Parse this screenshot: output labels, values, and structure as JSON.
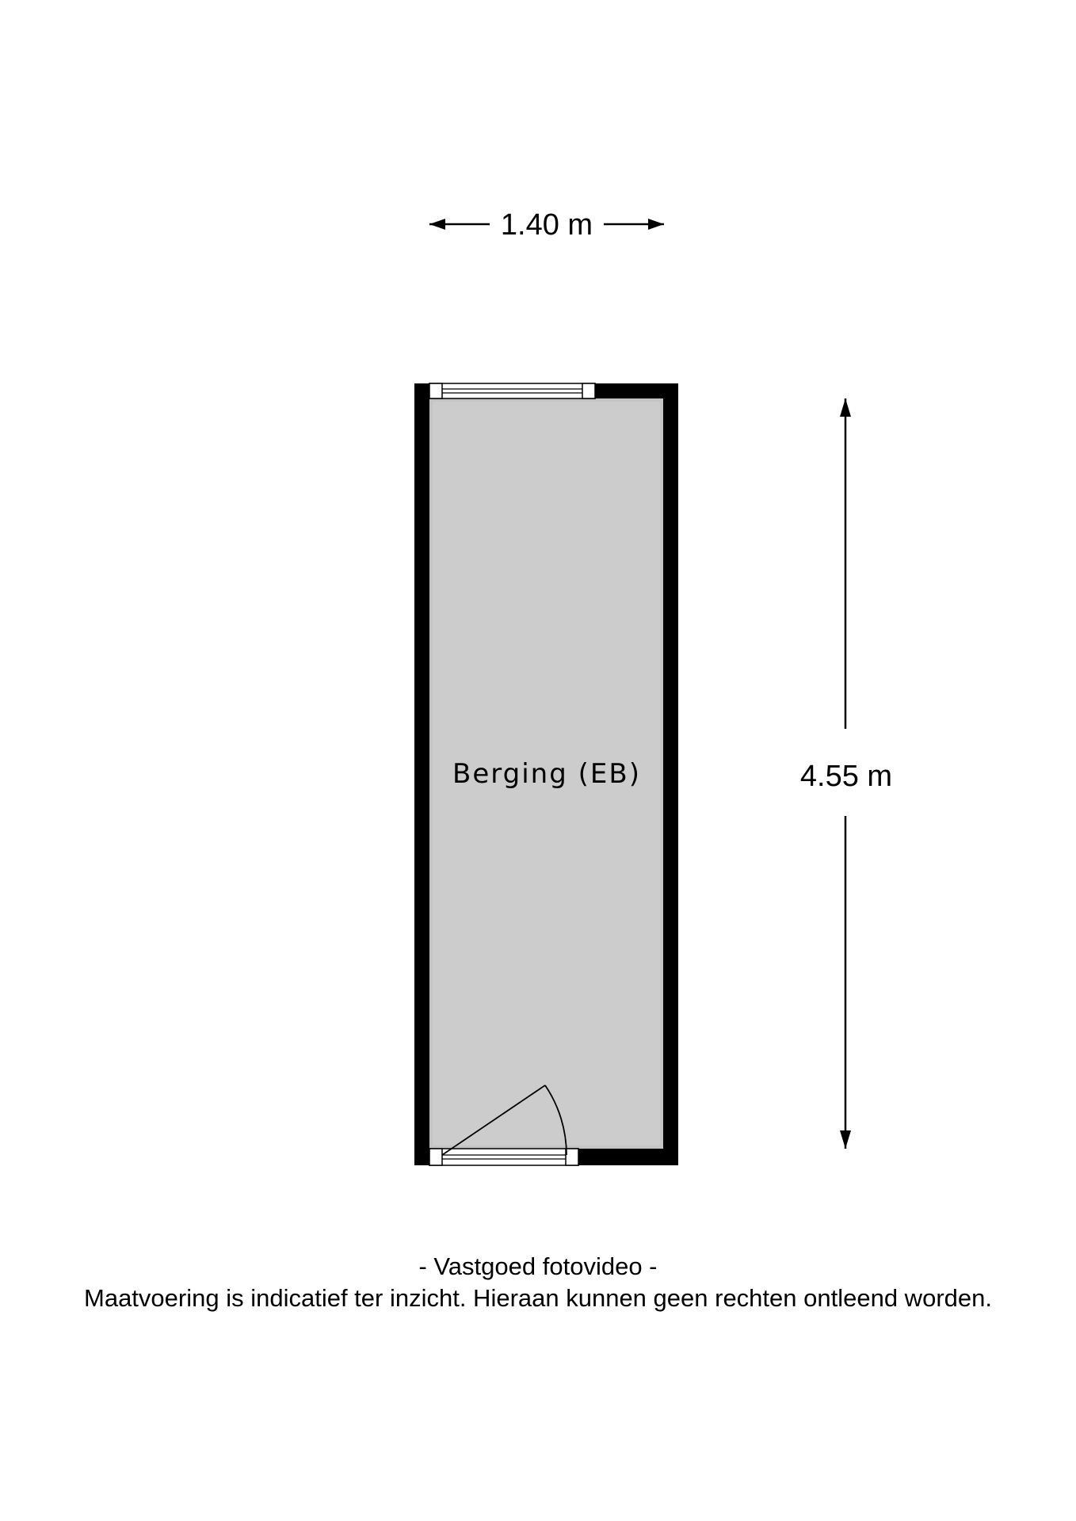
{
  "dimensions": {
    "width_label": "1.40 m",
    "height_label": "4.55 m"
  },
  "room": {
    "name": "Berging (EB)"
  },
  "footer": {
    "company": "- Vastgoed fotovideo -",
    "disclaimer": "Maatvoering is indicatief ter inzicht. Hieraan kunnen geen rechten ontleend worden."
  },
  "colors": {
    "wall": "#000000",
    "floor": "#cccccc",
    "background": "#ffffff"
  }
}
